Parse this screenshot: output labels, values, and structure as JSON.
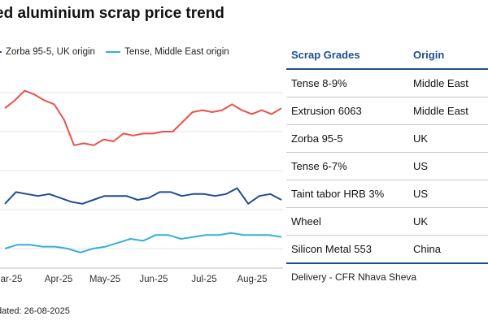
{
  "header": {
    "title": "ed aluminium scrap price trend",
    "updated": "dated: 26-08-2025"
  },
  "legend": {
    "items": [
      {
        "label": "Zorba 95-5, UK origin",
        "color": "#1f4e8c"
      },
      {
        "label": "Tense, Middle East origin",
        "color": "#35b0d8"
      }
    ]
  },
  "table": {
    "headers": {
      "grade": "Scrap Grades",
      "origin": "Origin"
    },
    "rows": [
      {
        "grade": "Tense 8-9%",
        "origin": "Middle East"
      },
      {
        "grade": "Extrusion 6063",
        "origin": "Middle East"
      },
      {
        "grade": "Zorba 95-5",
        "origin": "UK"
      },
      {
        "grade": "Tense 6-7%",
        "origin": "US"
      },
      {
        "grade": "Taint tabor HRB 3%",
        "origin": "US"
      },
      {
        "grade": "Wheel",
        "origin": "UK"
      },
      {
        "grade": "Silicon Metal 553",
        "origin": "China"
      }
    ],
    "delivery": "Delivery - CFR Nhava Sheva"
  },
  "chart_data": {
    "type": "line",
    "title": "",
    "xlabel": "",
    "ylabel": "",
    "x_ticks": [
      "ar-25",
      "Apr-25",
      "May-25",
      "Jun-25",
      "Jul-25",
      "Aug-25"
    ],
    "grid": "horizontal",
    "series": [
      {
        "name": "",
        "color": "#e8534a",
        "values": [
          6.6,
          6.8,
          7.05,
          6.95,
          6.8,
          6.7,
          6.3,
          5.65,
          5.7,
          5.65,
          5.8,
          5.75,
          5.95,
          5.9,
          5.95,
          5.95,
          6.0,
          6.0,
          6.25,
          6.5,
          6.55,
          6.5,
          6.55,
          6.7,
          6.55,
          6.45,
          6.55,
          6.45,
          6.6
        ]
      },
      {
        "name": "Zorba 95-5, UK origin",
        "color": "#1f4e8c",
        "values": [
          4.15,
          4.45,
          4.4,
          4.35,
          4.4,
          4.3,
          4.2,
          4.15,
          4.25,
          4.35,
          4.35,
          4.35,
          4.25,
          4.3,
          4.45,
          4.45,
          4.35,
          4.4,
          4.4,
          4.35,
          4.4,
          4.55,
          4.15,
          4.35,
          4.4,
          4.25
        ]
      },
      {
        "name": "Tense, Middle East origin",
        "color": "#35b0d8",
        "values": [
          3.0,
          3.1,
          3.1,
          3.05,
          3.05,
          3.0,
          2.9,
          3.0,
          3.05,
          3.15,
          3.25,
          3.2,
          3.35,
          3.35,
          3.25,
          3.3,
          3.35,
          3.35,
          3.4,
          3.35,
          3.35,
          3.35,
          3.3
        ]
      }
    ]
  }
}
